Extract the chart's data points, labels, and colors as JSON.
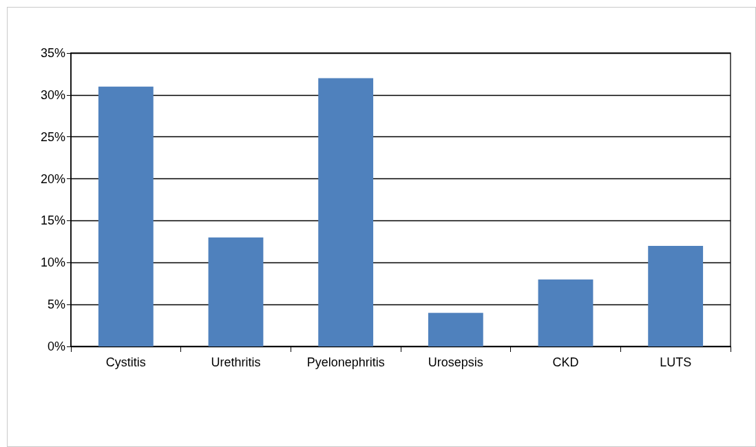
{
  "chart_data": {
    "type": "bar",
    "categories": [
      "Cystitis",
      "Urethritis",
      "Pyelonephritis",
      "Urosepsis",
      "CKD",
      "LUTS"
    ],
    "values": [
      31,
      13,
      32,
      4,
      8,
      12
    ],
    "color": "#4f81bd",
    "ylim": [
      0,
      35
    ],
    "yticks": [
      {
        "value": 0,
        "label": "0%"
      },
      {
        "value": 5,
        "label": "5%"
      },
      {
        "value": 10,
        "label": "10%"
      },
      {
        "value": 15,
        "label": "15%"
      },
      {
        "value": 20,
        "label": "20%"
      },
      {
        "value": 25,
        "label": "25%"
      },
      {
        "value": 30,
        "label": "30%"
      },
      {
        "value": 35,
        "label": "35%"
      }
    ],
    "grid": "y"
  }
}
